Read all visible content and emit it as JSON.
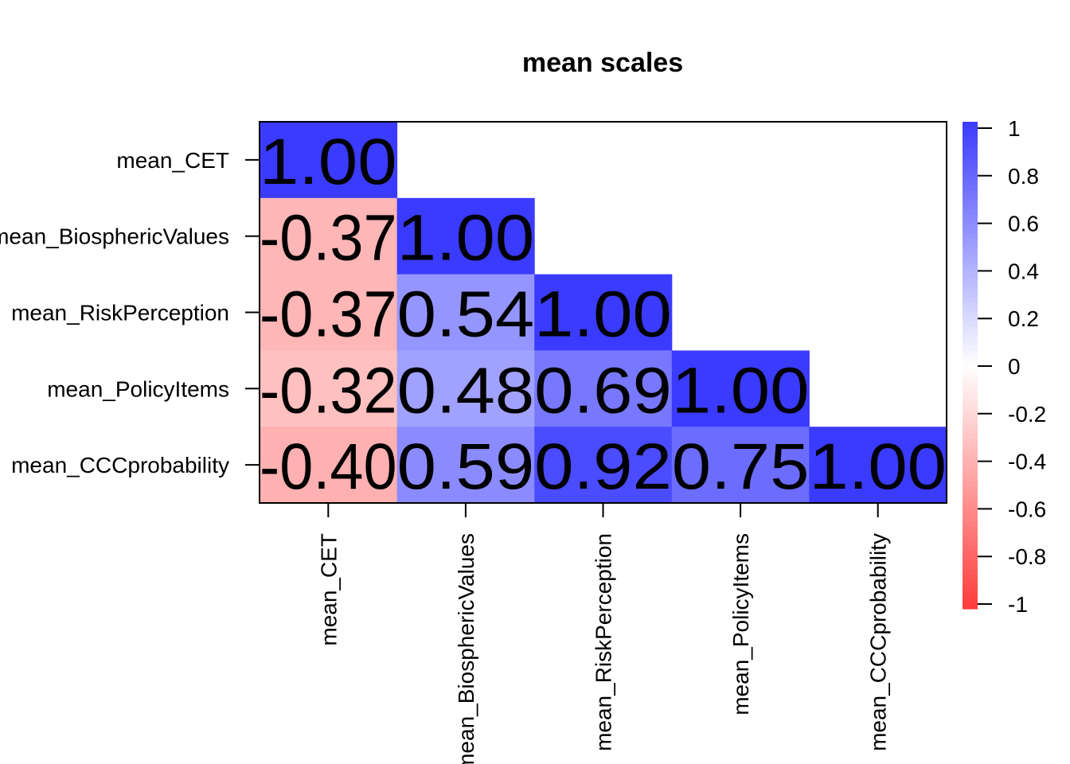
{
  "chart_data": {
    "type": "heatmap",
    "title": "mean scales",
    "variables": [
      "mean_CET",
      "mean_BiosphericValues",
      "mean_RiskPerception",
      "mean_PolicyItems",
      "mean_CCCprobability"
    ],
    "matrix": [
      [
        1.0,
        null,
        null,
        null,
        null
      ],
      [
        -0.37,
        1.0,
        null,
        null,
        null
      ],
      [
        -0.37,
        0.54,
        1.0,
        null,
        null
      ],
      [
        -0.32,
        0.48,
        0.69,
        1.0,
        null
      ],
      [
        -0.4,
        0.59,
        0.92,
        0.75,
        1.0
      ]
    ],
    "labels": [
      [
        "1.00",
        "",
        "",
        "",
        ""
      ],
      [
        "-0.37",
        "1.00",
        "",
        "",
        ""
      ],
      [
        "-0.37",
        "0.54",
        "1.00",
        "",
        ""
      ],
      [
        "-0.32",
        "0.48",
        "0.69",
        "1.00",
        ""
      ],
      [
        "-0.40",
        "0.59",
        "0.92",
        "0.75",
        "1.00"
      ]
    ],
    "legend": {
      "range": [
        -1,
        1
      ],
      "ticks": [
        "1",
        "0.8",
        "0.6",
        "0.4",
        "0.2",
        "0",
        "-0.2",
        "-0.4",
        "-0.6",
        "-0.8",
        "-1"
      ],
      "low_color": "#ff3b3b",
      "mid_color": "#ffffff",
      "high_color": "#3b3bff",
      "placement": "right"
    },
    "triangle": "lower"
  }
}
